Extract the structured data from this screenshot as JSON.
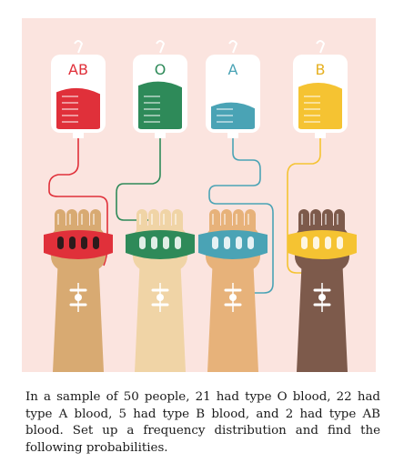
{
  "illustration": {
    "background_color": "#fbe4df",
    "bags": [
      {
        "label": "AB",
        "color": "#e0303a",
        "label_color": "#e0303a",
        "fill_level": 0.62
      },
      {
        "label": "O",
        "color": "#2e8a59",
        "label_color": "#2e8a59",
        "fill_level": 0.72
      },
      {
        "label": "A",
        "color": "#4aa3b5",
        "label_color": "#4aa3b5",
        "fill_level": 0.4
      },
      {
        "label": "B",
        "color": "#f5c332",
        "label_color": "#e6b020",
        "fill_level": 0.7
      }
    ],
    "arm_colors": [
      "#d8aa72",
      "#f0d4a6",
      "#e7b27a",
      "#7d5a4b"
    ],
    "icon": "blood-donation-illustration"
  },
  "problem": {
    "text": "In a sample of 50 people, 21 had type O blood, 22 had type A blood, 5 had type B blood, and 2 had type AB blood. Set up a frequency distribution and find the following probabilities."
  }
}
